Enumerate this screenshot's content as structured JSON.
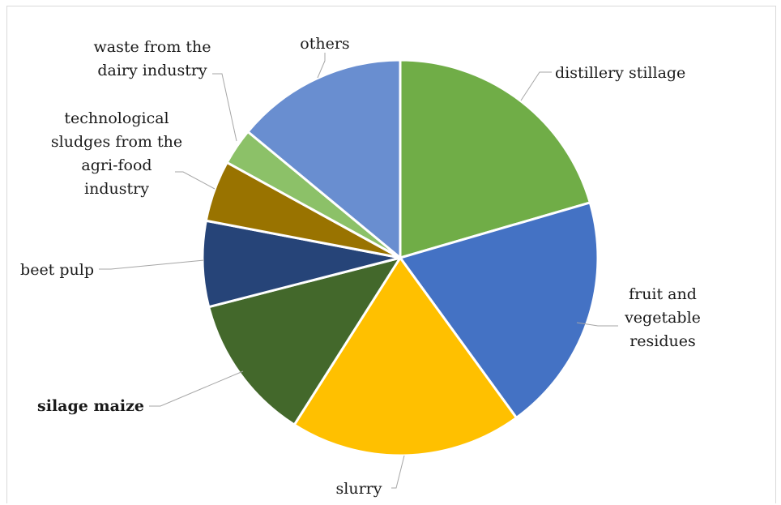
{
  "chart_data": {
    "type": "pie",
    "title": "",
    "slices": [
      {
        "label": "distillery stillage",
        "value": 20.5,
        "color": "#70AD47",
        "bold": false
      },
      {
        "label": "fruit and vegetable residues",
        "value": 19.5,
        "color": "#4472C4",
        "bold": false
      },
      {
        "label": "slurry",
        "value": 19.0,
        "color": "#FFC000",
        "bold": false
      },
      {
        "label": "silage maize",
        "value": 12.0,
        "color": "#43682B",
        "bold": true
      },
      {
        "label": "beet pulp",
        "value": 7.0,
        "color": "#264478",
        "bold": false
      },
      {
        "label": "technological sludges from the agri-food industry",
        "value": 5.0,
        "color": "#997300",
        "bold": false
      },
      {
        "label": "waste from the dairy industry",
        "value": 3.0,
        "color": "#8CC168",
        "bold": false
      },
      {
        "label": "others",
        "value": 14.0,
        "color": "#698ED0",
        "bold": false
      }
    ],
    "start_angle_deg": 0,
    "direction": "clockwise",
    "legend": "none"
  }
}
